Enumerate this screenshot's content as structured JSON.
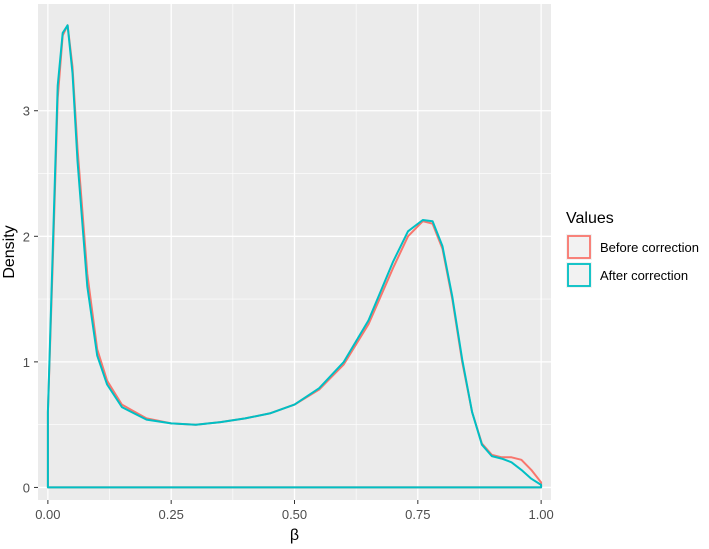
{
  "chart_data": {
    "type": "line",
    "title": "",
    "xlabel": "β",
    "ylabel": "Density",
    "xlim": [
      -0.02,
      1.02
    ],
    "ylim": [
      -0.1,
      3.85
    ],
    "x_ticks": [
      0.0,
      0.25,
      0.5,
      0.75,
      1.0
    ],
    "x_tick_labels": [
      "0.00",
      "0.25",
      "0.50",
      "0.75",
      "1.00"
    ],
    "y_ticks": [
      0,
      1,
      2,
      3
    ],
    "y_tick_labels": [
      "0",
      "1",
      "2",
      "3"
    ],
    "grid": true,
    "legend": {
      "title": "Values",
      "placement": "right",
      "entries": [
        "Before correction",
        "After correction"
      ]
    },
    "series": [
      {
        "name": "Before correction",
        "color": "#F8766D",
        "x": [
          0.0,
          0.01,
          0.02,
          0.03,
          0.04,
          0.05,
          0.06,
          0.08,
          0.1,
          0.12,
          0.15,
          0.2,
          0.25,
          0.3,
          0.35,
          0.4,
          0.45,
          0.5,
          0.55,
          0.6,
          0.65,
          0.7,
          0.73,
          0.76,
          0.78,
          0.8,
          0.82,
          0.84,
          0.86,
          0.88,
          0.9,
          0.92,
          0.94,
          0.96,
          0.98,
          1.0
        ],
        "y": [
          0.6,
          1.8,
          3.1,
          3.6,
          3.68,
          3.35,
          2.7,
          1.7,
          1.1,
          0.85,
          0.66,
          0.55,
          0.51,
          0.5,
          0.52,
          0.55,
          0.59,
          0.66,
          0.78,
          0.98,
          1.3,
          1.75,
          2.0,
          2.12,
          2.1,
          1.9,
          1.5,
          1.0,
          0.6,
          0.35,
          0.26,
          0.24,
          0.24,
          0.22,
          0.14,
          0.04
        ]
      },
      {
        "name": "After correction",
        "color": "#00BFC4",
        "x": [
          0.0,
          0.01,
          0.02,
          0.03,
          0.04,
          0.05,
          0.06,
          0.08,
          0.1,
          0.12,
          0.15,
          0.2,
          0.25,
          0.3,
          0.35,
          0.4,
          0.45,
          0.5,
          0.55,
          0.6,
          0.65,
          0.7,
          0.73,
          0.76,
          0.78,
          0.8,
          0.82,
          0.84,
          0.86,
          0.88,
          0.9,
          0.92,
          0.94,
          0.96,
          0.98,
          1.0
        ],
        "y": [
          0.6,
          1.9,
          3.2,
          3.62,
          3.68,
          3.3,
          2.6,
          1.6,
          1.05,
          0.82,
          0.64,
          0.54,
          0.51,
          0.5,
          0.52,
          0.55,
          0.59,
          0.66,
          0.79,
          1.0,
          1.33,
          1.8,
          2.04,
          2.13,
          2.12,
          1.92,
          1.52,
          1.02,
          0.6,
          0.34,
          0.25,
          0.23,
          0.2,
          0.14,
          0.07,
          0.02
        ]
      }
    ]
  }
}
